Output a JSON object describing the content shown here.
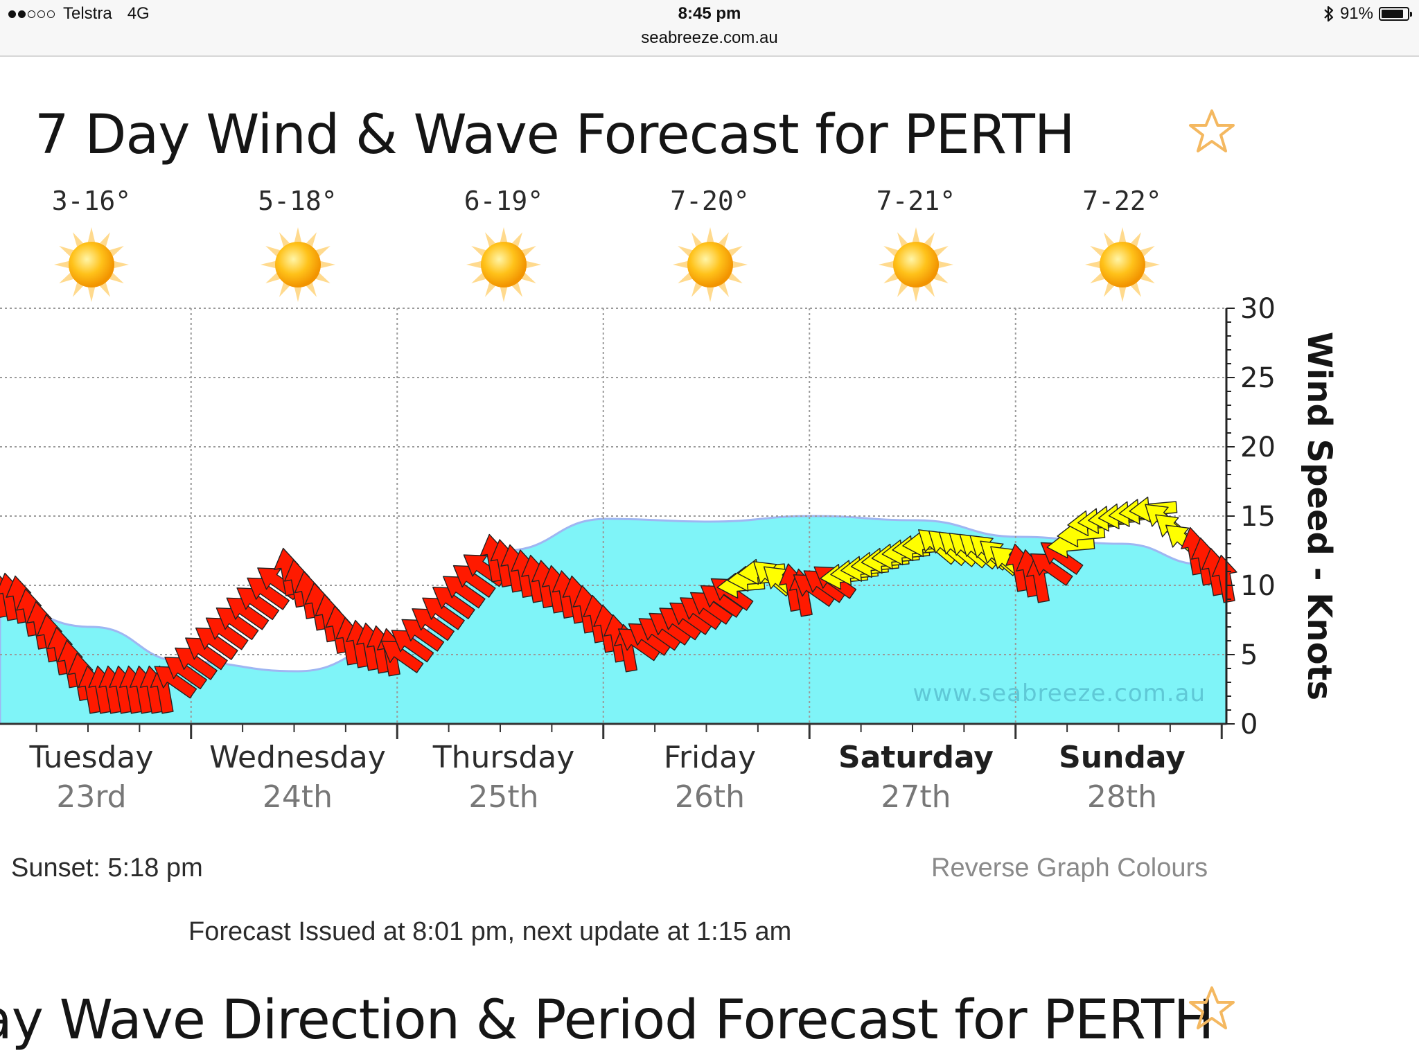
{
  "status_bar": {
    "carrier": "Telstra",
    "network": "4G",
    "time": "8:45 pm",
    "url": "seabreeze.com.au",
    "battery": "91%",
    "battery_level": 0.91,
    "signal_strength": 2,
    "signal_total": 5
  },
  "forecast_title": "7 Day Wind & Wave Forecast for PERTH",
  "next_title": "ay Wave Direction & Period Forecast for PERTH",
  "temps": [
    "3-16°",
    "5-18°",
    "6-19°",
    "7-20°",
    "7-21°",
    "7-22°"
  ],
  "days": [
    {
      "name": "Tuesday",
      "date": "23rd"
    },
    {
      "name": "Wednesday",
      "date": "24th"
    },
    {
      "name": "Thursday",
      "date": "25th"
    },
    {
      "name": "Friday",
      "date": "26th"
    },
    {
      "name": "Saturday",
      "date": "27th"
    },
    {
      "name": "Sunday",
      "date": "28th"
    }
  ],
  "sunset": "Sunset: 5:18 pm",
  "reverse_link": "Reverse Graph Colours",
  "forecast_issued": "Forecast Issued at 8:01 pm, next update at 1:15 am",
  "icons": {
    "weather": "sunny-icon",
    "favorite": "star-outline-icon",
    "bluetooth": "bluetooth-icon"
  },
  "colors": {
    "wave": "#7ff4f8",
    "wind_strong": "#ff1a00",
    "wind_light": "#ffff00",
    "grid": "#9a9a9a",
    "star": "#f4b860"
  },
  "chart_data": {
    "type": "area",
    "ylabel": "Wind Speed - Knots",
    "ylim": [
      0,
      30
    ],
    "yticks": [
      0,
      5,
      10,
      15,
      20,
      25,
      30
    ],
    "watermark": "www.seabreeze.com.au",
    "x_days": [
      -0.6,
      0,
      0.45,
      1,
      1.5,
      2,
      2.5,
      3,
      3.5,
      4,
      4.5,
      5,
      5.4,
      5.9
    ],
    "wave_height": [
      8.5,
      7.0,
      4.5,
      3.8,
      6.0,
      12.5,
      14.8,
      14.6,
      15.0,
      14.7,
      13.5,
      13.0,
      11.5,
      9.5
    ],
    "wind": {
      "x_days": [
        -0.6,
        -0.35,
        0,
        0.35,
        0.5,
        0.95,
        1.25,
        1.5,
        1.95,
        2.35,
        2.6,
        3.0,
        3.25,
        3.45,
        3.8,
        4.05,
        4.35,
        4.6,
        4.85,
        5.15,
        5.45,
        5.75,
        6.0
      ],
      "speed": [
        10,
        9,
        2.5,
        2.5,
        4.5,
        11,
        6,
        5,
        12,
        9,
        5.5,
        8.5,
        11,
        9.5,
        11.5,
        13,
        12.5,
        10.5,
        14.5,
        15.5,
        11,
        8,
        12
      ],
      "strength": [
        "strong",
        "strong",
        "strong",
        "strong",
        "strong",
        "strong",
        "strong",
        "strong",
        "strong",
        "strong",
        "strong",
        "strong",
        "light",
        "strong",
        "light",
        "light",
        "light",
        "strong",
        "light",
        "light",
        "strong",
        "strong",
        "light"
      ]
    }
  }
}
